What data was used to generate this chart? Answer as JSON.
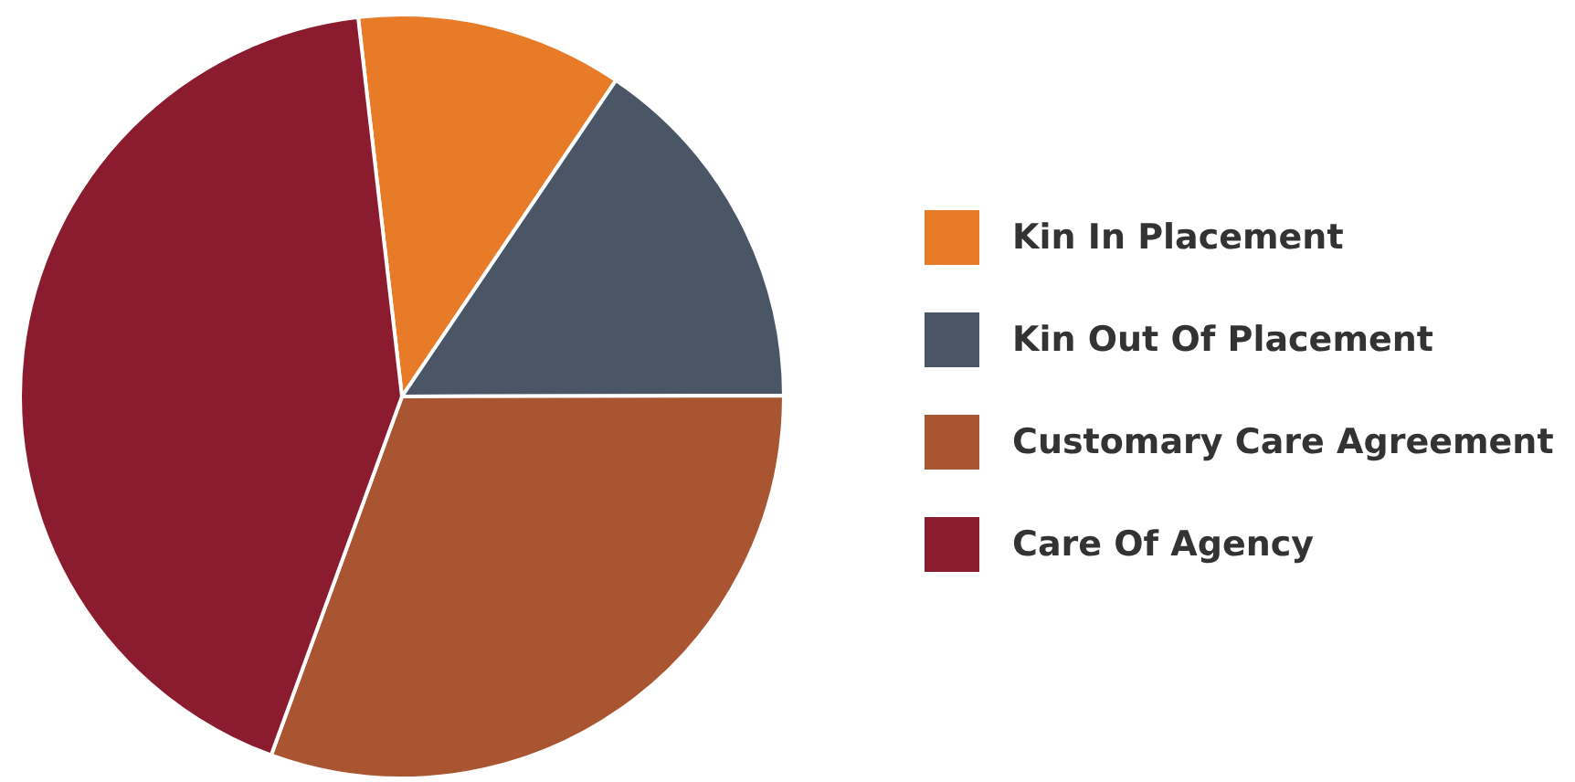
{
  "chart_data": {
    "type": "pie",
    "categories": [
      "Kin In Placement",
      "Kin Out Of Placement",
      "Customary Care Agreement",
      "Care Of Agency"
    ],
    "values": [
      11.3,
      15.5,
      30.6,
      42.6
    ],
    "colors": [
      "#e87b27",
      "#4a5665",
      "#a95531",
      "#8b1c2f"
    ],
    "legend": "right"
  }
}
